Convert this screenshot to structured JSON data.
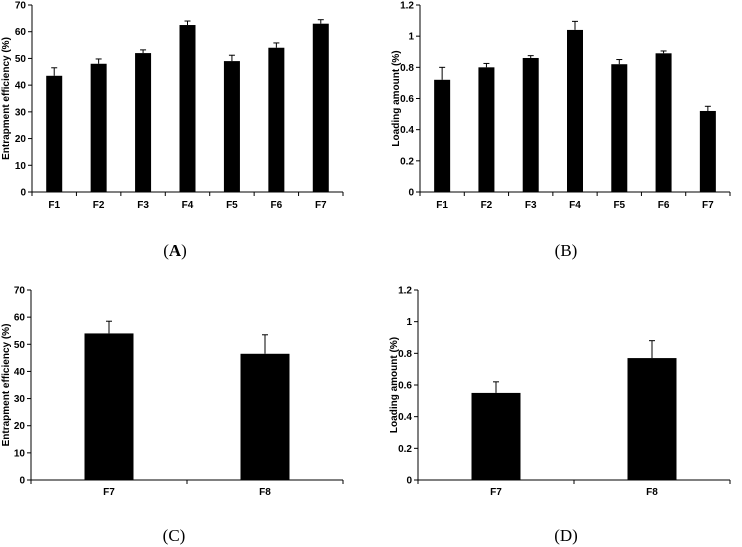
{
  "chart_data": [
    {
      "type": "bar",
      "panel_label": "A",
      "categories": [
        "F1",
        "F2",
        "F3",
        "F4",
        "F5",
        "F6",
        "F7"
      ],
      "values": [
        43.5,
        48,
        52,
        62.5,
        49,
        54,
        63
      ],
      "errors": [
        3,
        1.8,
        1.2,
        1.5,
        2.2,
        1.8,
        1.5
      ],
      "ylabel": "Entrapment efficiency (%)",
      "ylim": [
        0,
        70
      ],
      "yticks": [
        0,
        10,
        20,
        30,
        40,
        50,
        60,
        70
      ],
      "ytick_labels": [
        "0",
        "10",
        "20",
        "30",
        "40",
        "50",
        "60",
        "70"
      ],
      "bar_color": "#000000"
    },
    {
      "type": "bar",
      "panel_label": "(B)",
      "categories": [
        "F1",
        "F2",
        "F3",
        "F4",
        "F5",
        "F6",
        "F7"
      ],
      "values": [
        0.72,
        0.8,
        0.86,
        1.04,
        0.82,
        0.89,
        0.52
      ],
      "errors": [
        0.08,
        0.025,
        0.015,
        0.055,
        0.03,
        0.015,
        0.03
      ],
      "ylabel": "Loading amount (%)",
      "ylim": [
        0,
        1.2
      ],
      "yticks": [
        0,
        0.2,
        0.4,
        0.6,
        0.8,
        1.0,
        1.2
      ],
      "ytick_labels": [
        "0",
        "0.2",
        "0.4",
        "0.6",
        "0.8",
        "1",
        "1.2"
      ],
      "bar_color": "#000000"
    },
    {
      "type": "bar",
      "panel_label": "(C)",
      "categories": [
        "F7",
        "F8"
      ],
      "values": [
        54,
        46.5
      ],
      "errors": [
        4.5,
        7
      ],
      "ylabel": "Entrapment efficiency (%)",
      "ylim": [
        0,
        70
      ],
      "yticks": [
        0,
        10,
        20,
        30,
        40,
        50,
        60,
        70
      ],
      "ytick_labels": [
        "0",
        "10",
        "20",
        "30",
        "40",
        "50",
        "60",
        "70"
      ],
      "bar_color": "#000000"
    },
    {
      "type": "bar",
      "panel_label": "(D)",
      "categories": [
        "F7",
        "F8"
      ],
      "values": [
        0.55,
        0.77
      ],
      "errors": [
        0.07,
        0.11
      ],
      "ylabel": "Loading amount (%)",
      "ylim": [
        0,
        1.2
      ],
      "yticks": [
        0,
        0.2,
        0.4,
        0.6,
        0.8,
        1.0,
        1.2
      ],
      "ytick_labels": [
        "0",
        "0.2",
        "0.4",
        "0.6",
        "0.8",
        "1",
        "1.2"
      ],
      "bar_color": "#000000"
    }
  ]
}
